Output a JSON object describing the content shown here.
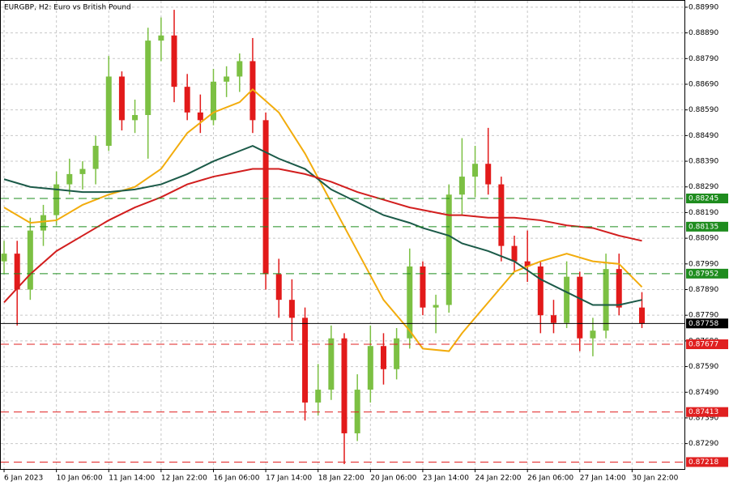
{
  "chart_data": {
    "type": "candlestick",
    "title": "EURGBP, H2:  Euro vs British Pound",
    "xlim": [
      -1,
      208
    ],
    "ylim": [
      0.87191,
      0.89015
    ],
    "grid": true,
    "up_color": "#7cc043",
    "down_color": "#e21a1a",
    "xticks": [
      {
        "value": 0,
        "label": "6 Jan 2023"
      },
      {
        "value": 16,
        "label": "10 Jan 06:00"
      },
      {
        "value": 32,
        "label": "11 Jan 14:00"
      },
      {
        "value": 48,
        "label": "12 Jan 22:00"
      },
      {
        "value": 64,
        "label": "16 Jan 06:00"
      },
      {
        "value": 80,
        "label": "17 Jan 14:00"
      },
      {
        "value": 96,
        "label": "18 Jan 22:00"
      },
      {
        "value": 112,
        "label": "20 Jan 06:00"
      },
      {
        "value": 128,
        "label": "23 Jan 14:00"
      },
      {
        "value": 144,
        "label": "24 Jan 22:00"
      },
      {
        "value": 160,
        "label": "26 Jan 06:00"
      },
      {
        "value": 176,
        "label": "27 Jan 14:00"
      },
      {
        "value": 192,
        "label": "30 Jan 22:00"
      }
    ],
    "yticks": [
      {
        "value": 0.8899,
        "label": "0.88990"
      },
      {
        "value": 0.8889,
        "label": "0.88890"
      },
      {
        "value": 0.8879,
        "label": "0.88790"
      },
      {
        "value": 0.8869,
        "label": "0.88690"
      },
      {
        "value": 0.8859,
        "label": "0.88590"
      },
      {
        "value": 0.8849,
        "label": "0.88490"
      },
      {
        "value": 0.8839,
        "label": "0.88390"
      },
      {
        "value": 0.8829,
        "label": "0.88290"
      },
      {
        "value": 0.8819,
        "label": "0.88190"
      },
      {
        "value": 0.8809,
        "label": "0.88090"
      },
      {
        "value": 0.8799,
        "label": "0.87990"
      },
      {
        "value": 0.8789,
        "label": "0.87890"
      },
      {
        "value": 0.8779,
        "label": "0.87790"
      },
      {
        "value": 0.8769,
        "label": "0.87690"
      },
      {
        "value": 0.8759,
        "label": "0.87590"
      },
      {
        "value": 0.8749,
        "label": "0.87490"
      },
      {
        "value": 0.8739,
        "label": "0.87390"
      },
      {
        "value": 0.8729,
        "label": "0.87290"
      }
    ],
    "x": [
      0,
      4,
      8,
      12,
      16,
      20,
      24,
      28,
      32,
      36,
      40,
      44,
      48,
      52,
      56,
      60,
      64,
      68,
      72,
      76,
      80,
      84,
      88,
      92,
      96,
      100,
      104,
      108,
      112,
      116,
      120,
      124,
      128,
      132,
      136,
      140,
      144,
      148,
      152,
      156,
      160,
      164,
      168,
      172,
      176,
      180,
      184,
      188,
      195
    ],
    "open": [
      0.88,
      0.8803,
      0.8789,
      0.8812,
      0.8818,
      0.883,
      0.8834,
      0.8836,
      0.8845,
      0.8872,
      0.8855,
      0.8857,
      0.8886,
      0.8888,
      0.8868,
      0.8858,
      0.8855,
      0.887,
      0.8872,
      0.8878,
      0.8855,
      0.8795,
      0.8785,
      0.8778,
      0.8745,
      0.875,
      0.877,
      0.8733,
      0.875,
      0.8767,
      0.8758,
      0.877,
      0.8798,
      0.8782,
      0.8783,
      0.8826,
      0.8833,
      0.8838,
      0.883,
      0.8806,
      0.88,
      0.8798,
      0.8779,
      0.8776,
      0.8794,
      0.877,
      0.8773,
      0.8797,
      0.8782
    ],
    "high": [
      0.8808,
      0.8808,
      0.8817,
      0.8822,
      0.8835,
      0.884,
      0.8839,
      0.8849,
      0.888,
      0.8874,
      0.8863,
      0.8891,
      0.8895,
      0.8898,
      0.8873,
      0.8865,
      0.8875,
      0.8876,
      0.8881,
      0.8887,
      0.8858,
      0.8801,
      0.8793,
      0.8782,
      0.876,
      0.8775,
      0.8772,
      0.8756,
      0.8775,
      0.8772,
      0.8774,
      0.8805,
      0.88,
      0.8787,
      0.883,
      0.8848,
      0.8845,
      0.8852,
      0.8833,
      0.881,
      0.8812,
      0.88,
      0.8785,
      0.88,
      0.8796,
      0.8778,
      0.8803,
      0.8803,
      0.8788
    ],
    "low": [
      0.8795,
      0.8775,
      0.8785,
      0.8806,
      0.8814,
      0.8826,
      0.8828,
      0.883,
      0.8843,
      0.8851,
      0.885,
      0.884,
      0.8878,
      0.8862,
      0.8855,
      0.885,
      0.8853,
      0.8864,
      0.8866,
      0.885,
      0.8789,
      0.8778,
      0.8769,
      0.8738,
      0.874,
      0.8746,
      0.8721,
      0.873,
      0.8745,
      0.8752,
      0.8754,
      0.8766,
      0.8779,
      0.8772,
      0.878,
      0.8818,
      0.8825,
      0.8826,
      0.88,
      0.8796,
      0.8792,
      0.8772,
      0.8772,
      0.8774,
      0.8765,
      0.8763,
      0.877,
      0.8779,
      0.8774
    ],
    "close": [
      0.8803,
      0.8789,
      0.8812,
      0.8818,
      0.883,
      0.8834,
      0.8836,
      0.8845,
      0.8872,
      0.8855,
      0.8857,
      0.8886,
      0.8888,
      0.8868,
      0.8858,
      0.8855,
      0.887,
      0.8872,
      0.8878,
      0.8855,
      0.8795,
      0.8785,
      0.8778,
      0.8745,
      0.875,
      0.877,
      0.8733,
      0.875,
      0.8767,
      0.8758,
      0.877,
      0.8798,
      0.8782,
      0.8783,
      0.8826,
      0.8833,
      0.8838,
      0.883,
      0.8806,
      0.88,
      0.8798,
      0.8779,
      0.8776,
      0.8794,
      0.877,
      0.8773,
      0.8797,
      0.8782,
      0.87758
    ],
    "ma_x": [
      0,
      8,
      16,
      24,
      32,
      40,
      48,
      56,
      64,
      72,
      76,
      84,
      92,
      100,
      108,
      116,
      124,
      128,
      136,
      140,
      148,
      156,
      164,
      172,
      180,
      188,
      195
    ],
    "moving_averages": [
      {
        "color": "#f2ac0c",
        "values": [
          0.8821,
          0.8815,
          0.8816,
          0.8822,
          0.8826,
          0.8829,
          0.8836,
          0.885,
          0.8858,
          0.8862,
          0.8867,
          0.8858,
          0.8842,
          0.8823,
          0.8804,
          0.8785,
          0.8773,
          0.8766,
          0.8765,
          0.8772,
          0.8784,
          0.8796,
          0.88,
          0.8803,
          0.88,
          0.8799,
          0.879
        ]
      },
      {
        "color": "#1b5a48",
        "values": [
          0.8832,
          0.8829,
          0.8828,
          0.8827,
          0.8827,
          0.8828,
          0.883,
          0.8834,
          0.8839,
          0.8843,
          0.8845,
          0.884,
          0.8836,
          0.8828,
          0.8823,
          0.8818,
          0.8815,
          0.8813,
          0.881,
          0.8807,
          0.8804,
          0.88,
          0.8793,
          0.8788,
          0.8783,
          0.8783,
          0.8785
        ]
      },
      {
        "color": "#d21e1e",
        "values": [
          0.8784,
          0.8795,
          0.8804,
          0.881,
          0.8816,
          0.8821,
          0.8825,
          0.883,
          0.8833,
          0.8835,
          0.8836,
          0.8836,
          0.8834,
          0.8831,
          0.8827,
          0.8824,
          0.8821,
          0.882,
          0.8818,
          0.8818,
          0.8817,
          0.8817,
          0.8816,
          0.8814,
          0.8813,
          0.881,
          0.8808
        ]
      }
    ],
    "levels": [
      {
        "value": 0.88245,
        "color": "#1e8c1e",
        "style": "dashed"
      },
      {
        "value": 0.88135,
        "color": "#1e8c1e",
        "style": "dashed"
      },
      {
        "value": 0.87952,
        "color": "#1e8c1e",
        "style": "dashed"
      },
      {
        "value": 0.87758,
        "color": "#000000",
        "style": "solid"
      },
      {
        "value": 0.87677,
        "color": "#e02020",
        "style": "dashed"
      },
      {
        "value": 0.87413,
        "color": "#e02020",
        "style": "dashed"
      },
      {
        "value": 0.87218,
        "color": "#e02020",
        "style": "dashed"
      }
    ]
  }
}
